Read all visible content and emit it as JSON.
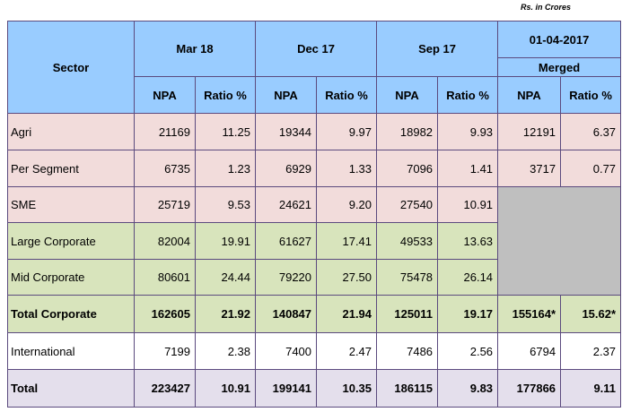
{
  "units_note": "Rs. in Crores",
  "header": {
    "sector": "Sector",
    "periods": [
      "Mar 18",
      "Dec 17",
      "Sep 17"
    ],
    "merged_date": "01-04-2017",
    "merged_label": "Merged",
    "npa": "NPA",
    "ratio": "Ratio %"
  },
  "rows": [
    {
      "sector": "Agri",
      "cells": [
        "21169",
        "11.25",
        "19344",
        "9.97",
        "18982",
        "9.93",
        "12191",
        "6.37"
      ]
    },
    {
      "sector": "Per Segment",
      "cells": [
        "6735",
        "1.23",
        "6929",
        "1.33",
        "7096",
        "1.41",
        "3717",
        "0.77"
      ]
    },
    {
      "sector": "SME",
      "cells": [
        "25719",
        "9.53",
        "24621",
        "9.20",
        "27540",
        "10.91",
        "",
        ""
      ]
    },
    {
      "sector": "Large Corporate",
      "cells": [
        "82004",
        "19.91",
        "61627",
        "17.41",
        "49533",
        "13.63",
        "",
        ""
      ]
    },
    {
      "sector": "Mid Corporate",
      "cells": [
        "80601",
        "24.44",
        "79220",
        "27.50",
        "75478",
        "26.14",
        "",
        ""
      ]
    },
    {
      "sector": "Total Corporate",
      "cells": [
        "162605",
        "21.92",
        "140847",
        "21.94",
        "125011",
        "19.17",
        "155164*",
        "15.62*"
      ]
    },
    {
      "sector": "International",
      "cells": [
        "7199",
        "2.38",
        "7400",
        "2.47",
        "7486",
        "2.56",
        "6794",
        "2.37"
      ]
    },
    {
      "sector": "Total",
      "cells": [
        "223427",
        "10.91",
        "199141",
        "10.35",
        "186115",
        "9.83",
        "177866",
        "9.11"
      ]
    }
  ],
  "colors": {
    "header_bg": "#99ccff",
    "pink_rows": "#f2dcdb",
    "green_rows": "#d8e4bc",
    "total_bg": "#e4dfec",
    "merged_blank": "#bfbfbf",
    "border": "#5b4a7e"
  }
}
